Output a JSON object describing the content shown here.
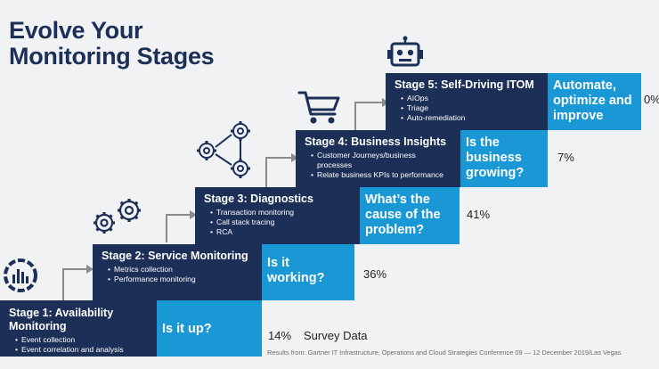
{
  "title": {
    "line1": "Evolve Your",
    "line2": "Monitoring Stages"
  },
  "stages": [
    {
      "title": "Stage 1: Availability Monitoring",
      "items": [
        "Event collection",
        "Event correlation and analysis"
      ],
      "question": "Is it up?",
      "percent": "14%"
    },
    {
      "title": "Stage 2: Service Monitoring",
      "items": [
        "Metrics collection",
        "Performance monitoring"
      ],
      "question": "Is it working?",
      "percent": "36%"
    },
    {
      "title": "Stage 3: Diagnostics",
      "items": [
        "Transaction monitoring",
        "Call stack tracing",
        "RCA"
      ],
      "question": "What’s the cause of the problem?",
      "percent": "41%"
    },
    {
      "title": "Stage 4: Business Insights",
      "items": [
        "Customer Journeys/business processes",
        "Relate business KPIs to performance"
      ],
      "question": "Is the business growing?",
      "percent": "7%"
    },
    {
      "title": "Stage 5: Self-Driving ITOM",
      "items": [
        "AIOps",
        "Triage",
        "Auto-remediation"
      ],
      "question": "Automate, optimize and improve",
      "percent": "0%"
    }
  ],
  "survey_label": "Survey Data",
  "footer": "Results from: Gartner IT Infrastructure, Operations and Cloud Strategies Conference 09 — 12 December 2019/Las Vegas",
  "icons": [
    "pulse-chart-icon",
    "gears-icon",
    "workflow-gears-icon",
    "shopping-cart-icon",
    "robot-icon"
  ],
  "colors": {
    "stage_bg": "#1b2f57",
    "question_bg": "#1a98d6",
    "connector": "#8a8a8a"
  }
}
